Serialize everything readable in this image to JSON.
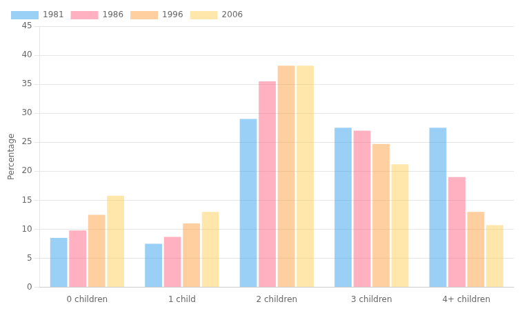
{
  "chart_data": {
    "type": "bar",
    "categories": [
      "0 children",
      "1 child",
      "2 children",
      "3 children",
      "4+ children"
    ],
    "series": [
      {
        "name": "1981",
        "values": [
          8.5,
          7.5,
          29.0,
          27.5,
          27.5
        ]
      },
      {
        "name": "1986",
        "values": [
          9.8,
          8.7,
          35.5,
          27.0,
          19.0
        ]
      },
      {
        "name": "1996",
        "values": [
          12.5,
          11.0,
          38.2,
          24.7,
          13.0
        ]
      },
      {
        "name": "2006",
        "values": [
          15.8,
          13.0,
          38.2,
          21.2,
          10.7
        ]
      }
    ],
    "ylabel": "Percentage",
    "ylim": [
      0,
      45
    ],
    "yticks": [
      0,
      5,
      10,
      15,
      20,
      25,
      30,
      35,
      40,
      45
    ],
    "grid": true,
    "legend": "upper left"
  }
}
